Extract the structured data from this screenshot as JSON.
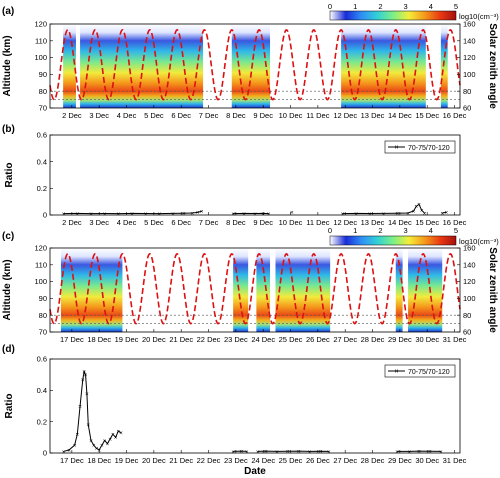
{
  "colors": {
    "sza_line": "#dd1111",
    "ratio_line": "#000000",
    "colormap": [
      "#ffffff",
      "#1a2cd8",
      "#2f8ff5",
      "#33cfd8",
      "#7bef87",
      "#f3ee3a",
      "#f59a1c",
      "#e93a12",
      "#a60f0f"
    ]
  },
  "panels": [
    {
      "id": "a",
      "label": "(a)",
      "kind": "heatmap",
      "ylabel": "Altitude (km)",
      "y2label": "Solar zenith angle",
      "yticks": [
        "70",
        "80",
        "90",
        "100",
        "110",
        "120"
      ],
      "y2ticks": [
        "60",
        "80",
        "100",
        "120",
        "140",
        "160"
      ],
      "xticks": [
        "2 Dec",
        "3 Dec",
        "4 Dec",
        "5 Dec",
        "6 Dec",
        "7 Dec",
        "8 Dec",
        "9 Dec",
        "10 Dec",
        "11 Dec",
        "12 Dec",
        "13 Dec",
        "14 Dec",
        "15 Dec",
        "16 Dec"
      ],
      "colorbar_ticks": [
        "0",
        "1",
        "2",
        "3",
        "4",
        "5"
      ],
      "colorbar_label": "log10(cm⁻³)"
    },
    {
      "id": "b",
      "label": "(b)",
      "kind": "line",
      "ylabel": "Ratio",
      "yticks": [
        "0",
        "0.2",
        "0.4",
        "0.6"
      ],
      "xticks": [
        "2 Dec",
        "3 Dec",
        "4 Dec",
        "5 Dec",
        "6 Dec",
        "7 Dec",
        "8 Dec",
        "9 Dec",
        "10 Dec",
        "11 Dec",
        "12 Dec",
        "13 Dec",
        "14 Dec",
        "15 Dec",
        "16 Dec"
      ],
      "legend": "70-75/70-120"
    },
    {
      "id": "c",
      "label": "(c)",
      "kind": "heatmap",
      "ylabel": "Altitude (km)",
      "y2label": "Solar zenith angle",
      "yticks": [
        "70",
        "80",
        "90",
        "100",
        "110",
        "120"
      ],
      "y2ticks": [
        "60",
        "80",
        "100",
        "120",
        "140",
        "160"
      ],
      "xticks": [
        "17 Dec",
        "18 Dec",
        "19 Dec",
        "20 Dec",
        "21 Dec",
        "22 Dec",
        "23 Dec",
        "24 Dec",
        "25 Dec",
        "26 Dec",
        "27 Dec",
        "28 Dec",
        "29 Dec",
        "30 Dec",
        "31 Dec"
      ],
      "colorbar_ticks": [
        "0",
        "1",
        "2",
        "3",
        "4",
        "5"
      ],
      "colorbar_label": "log10(cm⁻³)"
    },
    {
      "id": "d",
      "label": "(d)",
      "kind": "line",
      "ylabel": "Ratio",
      "xlabel": "Date",
      "yticks": [
        "0",
        "0.2",
        "0.4",
        "0.6"
      ],
      "xticks": [
        "17 Dec",
        "18 Dec",
        "19 Dec",
        "20 Dec",
        "21 Dec",
        "22 Dec",
        "23 Dec",
        "24 Dec",
        "25 Dec",
        "26 Dec",
        "27 Dec",
        "28 Dec",
        "29 Dec",
        "30 Dec",
        "31 Dec"
      ],
      "legend": "70-75/70-120"
    }
  ],
  "chart_data": [
    {
      "type": "heatmap",
      "panel": "(a)",
      "xlim": [
        1.2,
        16.2
      ],
      "ylim": [
        70,
        120
      ],
      "y2lim": [
        60,
        160
      ],
      "colorbar_range": [
        0,
        5
      ],
      "reference_altitudes_km": [
        75,
        80
      ],
      "data_intervals": [
        [
          1.68,
          2.15
        ],
        [
          2.3,
          6.8
        ],
        [
          7.85,
          9.25
        ],
        [
          11.85,
          14.95
        ],
        [
          15.5,
          15.75
        ]
      ],
      "series": [
        {
          "name": "Solar zenith angle",
          "axis": "right",
          "style": "dashed",
          "period_days": 1,
          "min": 70,
          "max": 153,
          "minimum_at_day_fraction": 0.35
        }
      ]
    },
    {
      "type": "line",
      "panel": "(b)",
      "xlim": [
        1.2,
        16.2
      ],
      "ylim": [
        0,
        0.6
      ],
      "series": [
        {
          "name": "70-75/70-120",
          "segments": [
            {
              "x": [
                1.7,
                2.2,
                2.7,
                3.2,
                3.7,
                4.2,
                4.7,
                5.2,
                5.7,
                6.1,
                6.4,
                6.6,
                6.75
              ],
              "y": [
                0.01,
                0.012,
                0.01,
                0.011,
                0.01,
                0.012,
                0.011,
                0.01,
                0.012,
                0.013,
                0.015,
                0.02,
                0.028
              ]
            },
            {
              "x": [
                7.9,
                8.3,
                8.7,
                9.0,
                9.2
              ],
              "y": [
                0.01,
                0.012,
                0.011,
                0.012,
                0.01
              ]
            },
            {
              "x": [
                10.05
              ],
              "y": [
                0.02
              ]
            },
            {
              "x": [
                11.9,
                12.4,
                12.9,
                13.4,
                13.9,
                14.3,
                14.5,
                14.6,
                14.7,
                14.8,
                14.9
              ],
              "y": [
                0.01,
                0.012,
                0.011,
                0.012,
                0.013,
                0.015,
                0.03,
                0.065,
                0.08,
                0.035,
                0.015
              ]
            },
            {
              "x": [
                15.55,
                15.7
              ],
              "y": [
                0.015,
                0.02
              ]
            }
          ]
        }
      ]
    },
    {
      "type": "heatmap",
      "panel": "(c)",
      "xlim": [
        16.2,
        31.2
      ],
      "ylim": [
        70,
        120
      ],
      "y2lim": [
        60,
        160
      ],
      "colorbar_range": [
        0,
        5
      ],
      "reference_altitudes_km": [
        75,
        80
      ],
      "data_intervals": [
        [
          16.6,
          18.85
        ],
        [
          22.9,
          23.45
        ],
        [
          23.75,
          24.25
        ],
        [
          24.45,
          26.45
        ],
        [
          28.85,
          29.1
        ],
        [
          29.3,
          30.55
        ]
      ],
      "series": [
        {
          "name": "Solar zenith angle",
          "axis": "right",
          "style": "dashed",
          "period_days": 1,
          "min": 70,
          "max": 153,
          "minimum_at_day_fraction": 0.35
        }
      ]
    },
    {
      "type": "line",
      "panel": "(d)",
      "xlim": [
        16.2,
        31.2
      ],
      "ylim": [
        0,
        0.6
      ],
      "series": [
        {
          "name": "70-75/70-120",
          "segments": [
            {
              "x": [
                16.7,
                16.9,
                17.1,
                17.2,
                17.3,
                17.4,
                17.45,
                17.5,
                17.55,
                17.6,
                17.7,
                17.8,
                17.9,
                18.0,
                18.1,
                18.2,
                18.3,
                18.4,
                18.5,
                18.6,
                18.7,
                18.8
              ],
              "y": [
                0.01,
                0.02,
                0.05,
                0.12,
                0.3,
                0.47,
                0.52,
                0.5,
                0.38,
                0.18,
                0.08,
                0.05,
                0.03,
                0.02,
                0.05,
                0.08,
                0.06,
                0.09,
                0.12,
                0.1,
                0.14,
                0.13
              ]
            },
            {
              "x": [
                22.9,
                23.2,
                23.4
              ],
              "y": [
                0.01,
                0.012,
                0.01
              ]
            },
            {
              "x": [
                23.8,
                24.1,
                24.5,
                24.9,
                25.3,
                25.7,
                26.1,
                26.4
              ],
              "y": [
                0.01,
                0.012,
                0.01,
                0.011,
                0.012,
                0.01,
                0.011,
                0.01
              ]
            },
            {
              "x": [
                28.9,
                29.35,
                29.7,
                30.1,
                30.5
              ],
              "y": [
                0.01,
                0.01,
                0.012,
                0.011,
                0.01
              ]
            }
          ]
        }
      ]
    }
  ]
}
